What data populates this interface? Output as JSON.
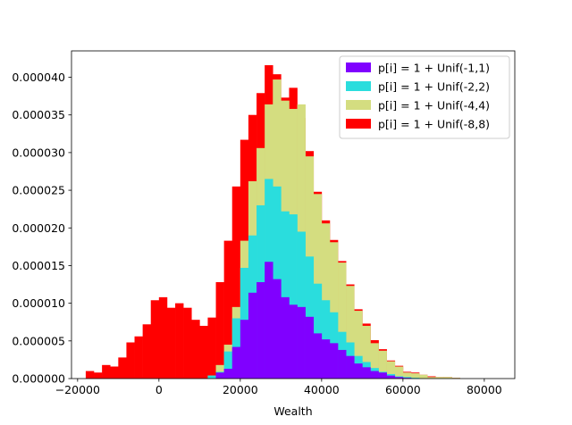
{
  "chart_data": {
    "type": "histogram",
    "title": "",
    "xlabel": "Wealth",
    "ylabel": "",
    "xlim": [
      -21500,
      87500
    ],
    "ylim": [
      0,
      4.35e-05
    ],
    "bin_start": -18000,
    "bin_width": 2000,
    "x_ticks": [
      -20000,
      0,
      20000,
      40000,
      60000,
      80000
    ],
    "x_tick_labels": [
      "−20000",
      "0",
      "20000",
      "40000",
      "60000",
      "80000"
    ],
    "y_ticks": [
      0,
      5e-06,
      1e-05,
      1.5e-05,
      2e-05,
      2.5e-05,
      3e-05,
      3.5e-05,
      4e-05
    ],
    "y_tick_labels": [
      "0.000000",
      "0.000005",
      "0.000010",
      "0.000015",
      "0.000020",
      "0.000025",
      "0.000030",
      "0.000035",
      "0.000040"
    ],
    "legend_position": "top-right",
    "grid": false,
    "series": [
      {
        "name": "p[i] = 1 + Unif(-1,1)",
        "color": "#8000ff",
        "values": [
          0,
          0,
          0,
          0,
          0,
          0,
          0,
          0,
          0,
          0,
          0,
          0,
          0,
          0,
          0,
          0,
          8e-07,
          1.3e-06,
          4.2e-06,
          7.8e-06,
          1.14e-05,
          1.28e-05,
          1.55e-05,
          1.32e-05,
          1.08e-05,
          9.8e-06,
          9.5e-06,
          8.2e-06,
          6e-06,
          5.2e-06,
          4.7e-06,
          3.8e-06,
          3e-06,
          2e-06,
          1.5e-06,
          1e-06,
          8e-07,
          4e-07,
          2e-07,
          1e-07,
          0,
          0,
          0,
          0,
          0,
          0,
          0,
          0,
          0,
          0,
          0,
          0,
          0,
          1e-07,
          1e-07
        ]
      },
      {
        "name": "p[i] = 1 + Unif(-2,2)",
        "color": "#2adddd",
        "values": [
          0,
          0,
          0,
          0,
          0,
          0,
          0,
          0,
          0,
          0,
          0,
          0,
          0,
          0,
          0,
          4e-07,
          9e-07,
          3.6e-06,
          8e-06,
          1.47e-05,
          1.9e-05,
          2.3e-05,
          2.65e-05,
          2.55e-05,
          2.22e-05,
          2.18e-05,
          1.95e-05,
          1.62e-05,
          1.26e-05,
          1.04e-05,
          8.8e-06,
          6.2e-06,
          4.8e-06,
          3e-06,
          2.2e-06,
          1.4e-06,
          9e-07,
          6e-07,
          3e-07,
          2e-07,
          1e-07,
          0,
          0,
          0,
          0,
          0,
          0,
          0,
          0,
          0,
          0,
          0,
          0,
          1e-07,
          1e-07
        ]
      },
      {
        "name": "p[i] = 1 + Unif(-4,4)",
        "color": "#d4dd80",
        "values": [
          0,
          0,
          0,
          0,
          0,
          0,
          0,
          0,
          0,
          0,
          0,
          0,
          0,
          0,
          0,
          4e-07,
          1.8e-06,
          4.5e-06,
          9.5e-06,
          1.83e-05,
          2.62e-05,
          3.06e-05,
          3.64e-05,
          3.97e-05,
          3.69e-05,
          3.58e-05,
          3.64e-05,
          2.95e-05,
          2.45e-05,
          2.06e-05,
          1.81e-05,
          1.54e-05,
          1.23e-05,
          9e-06,
          7e-06,
          4.7e-06,
          3.7e-06,
          2.3e-06,
          1.6e-06,
          8e-07,
          7e-07,
          5e-07,
          2e-07,
          2e-07,
          2e-07,
          1e-07,
          0,
          0,
          0,
          0,
          0,
          0,
          0,
          0,
          0
        ]
      },
      {
        "name": "p[i] = 1 + Unif(-8,8)",
        "color": "#ff0000",
        "values": [
          1e-06,
          8e-07,
          1.8e-06,
          1.6e-06,
          2.8e-06,
          4.8e-06,
          5.6e-06,
          7.2e-06,
          1.04e-05,
          1.08e-05,
          9.4e-06,
          1e-05,
          9.4e-06,
          7.8e-06,
          7e-06,
          8.1e-06,
          1.28e-05,
          1.83e-05,
          2.55e-05,
          3.17e-05,
          3.5e-05,
          3.79e-05,
          4.16e-05,
          4.04e-05,
          3.73e-05,
          3.86e-05,
          3.46e-05,
          3.02e-05,
          2.48e-05,
          2.1e-05,
          1.84e-05,
          1.56e-05,
          1.25e-05,
          9.2e-06,
          7.3e-06,
          5.1e-06,
          3.9e-06,
          2.4e-06,
          1.7e-06,
          9e-07,
          8e-07,
          5e-07,
          3e-07,
          2e-07,
          2e-07,
          1e-07,
          0,
          0,
          0,
          0,
          0,
          0,
          0,
          0,
          0
        ]
      }
    ]
  }
}
